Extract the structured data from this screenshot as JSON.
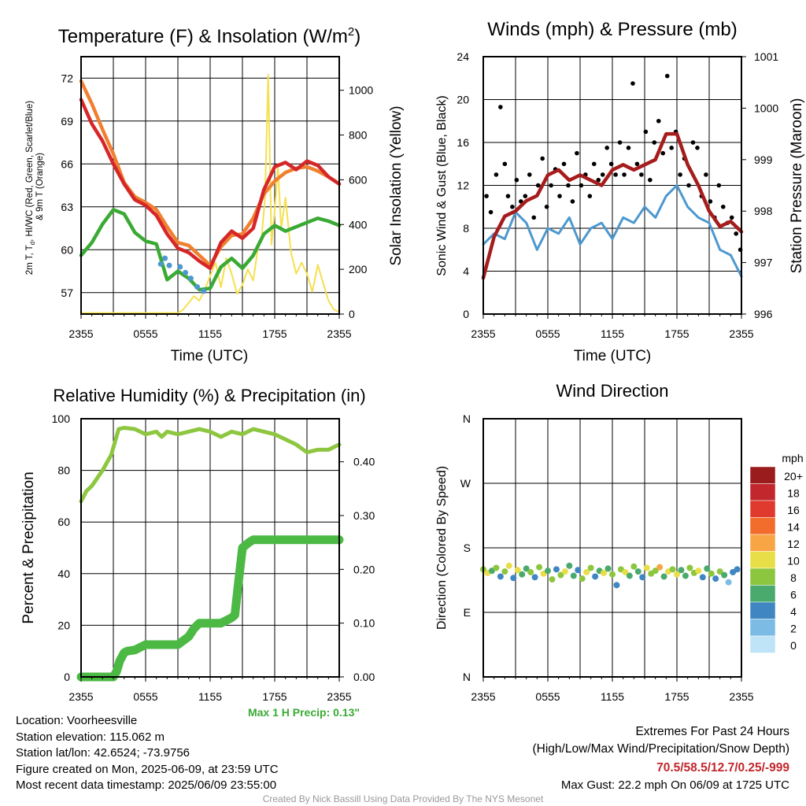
{
  "colors": {
    "red": "#d62728",
    "orange": "#f08030",
    "green": "#3aaa35",
    "yellow": "#f5e050",
    "blue": "#4d98cf",
    "black": "#000000",
    "maroon": "#a61c1c",
    "rh_green": "#8dc63f",
    "precip_green": "#4cb944",
    "extremes_red": "#c1272d"
  },
  "chart_data": [
    {
      "type": "line",
      "title": "Temperature (F) & Insolation (W/m²)",
      "xlabel": "Time (UTC)",
      "ylabel_left": "2m T, Td, HI/WC (Red, Green, Scarlet/Blue) & 9m T (Orange)",
      "ylabel_right": "Solar Insolation (Yellow)",
      "x_ticks": [
        "2355",
        "0555",
        "1155",
        "1755",
        "2355"
      ],
      "ylim_left": [
        55.5,
        73.5
      ],
      "yticks_left": [
        57,
        60,
        63,
        66,
        69,
        72
      ],
      "ylim_right": [
        0,
        1150
      ],
      "yticks_right": [
        0,
        200,
        400,
        600,
        800,
        1000
      ],
      "x_hours_range": [
        0,
        24
      ],
      "series": [
        {
          "key": "t9m",
          "color": "orange",
          "axis": "left",
          "x": [
            0,
            1,
            2,
            3,
            4,
            5,
            6,
            7,
            8,
            9,
            10,
            11,
            12,
            13,
            14,
            15,
            16,
            17,
            18,
            19,
            20,
            21,
            22,
            23,
            24
          ],
          "y": [
            71.8,
            70.2,
            68.4,
            66.7,
            64.7,
            63.7,
            63.3,
            62.8,
            61.6,
            60.5,
            60.3,
            59.6,
            58.9,
            60.2,
            61.0,
            61.1,
            62.2,
            63.9,
            64.8,
            65.4,
            65.7,
            65.8,
            65.5,
            65.1,
            64.6
          ]
        },
        {
          "key": "t2m",
          "color": "red",
          "axis": "left",
          "x": [
            0,
            1,
            2,
            3,
            4,
            5,
            6,
            7,
            8,
            9,
            10,
            11,
            12,
            13,
            14,
            15,
            16,
            17,
            18,
            19,
            20,
            21,
            22,
            23,
            24
          ],
          "y": [
            70.5,
            68.8,
            67.6,
            66.0,
            64.6,
            63.5,
            63.1,
            62.4,
            61.1,
            60.1,
            59.8,
            59.2,
            58.7,
            60.5,
            61.3,
            60.8,
            61.5,
            64.2,
            65.8,
            66.1,
            65.6,
            66.2,
            65.9,
            65.1,
            64.6
          ]
        },
        {
          "key": "td",
          "color": "green",
          "axis": "left",
          "x": [
            0,
            1,
            2,
            3,
            4,
            5,
            6,
            7,
            8,
            9,
            10,
            11,
            12,
            13,
            14,
            15,
            16,
            17,
            18,
            19,
            20,
            21,
            22,
            23,
            24
          ],
          "y": [
            59.6,
            60.5,
            61.8,
            62.8,
            62.5,
            61.2,
            60.6,
            60.4,
            57.9,
            58.5,
            58.0,
            57.2,
            57.3,
            58.8,
            59.4,
            58.7,
            59.6,
            61.1,
            61.7,
            61.3,
            61.6,
            61.9,
            62.2,
            62.0,
            61.7
          ]
        },
        {
          "key": "solar",
          "color": "yellow",
          "axis": "right",
          "x": [
            0,
            1,
            2,
            3,
            4,
            5,
            6,
            7,
            8,
            9,
            9.5,
            10,
            10.5,
            11,
            11.5,
            12,
            12.5,
            13,
            13.5,
            14,
            14.5,
            15,
            15.5,
            16,
            16.4,
            16.8,
            17.1,
            17.4,
            17.7,
            18,
            18.3,
            18.6,
            19,
            19.5,
            20,
            20.5,
            21,
            21.5,
            22,
            22.5,
            23,
            23.5,
            24
          ],
          "y": [
            5,
            5,
            5,
            5,
            5,
            5,
            5,
            5,
            5,
            5,
            20,
            50,
            80,
            60,
            110,
            170,
            230,
            120,
            250,
            180,
            90,
            130,
            200,
            150,
            280,
            350,
            520,
            1070,
            310,
            460,
            660,
            380,
            520,
            280,
            180,
            230,
            180,
            100,
            220,
            140,
            60,
            20,
            10
          ]
        },
        {
          "key": "hi_wc",
          "color": "blue",
          "axis": "left",
          "x": [
            7.4,
            7.8,
            8.2,
            9.2,
            9.7,
            10.2,
            10.8,
            11.4
          ],
          "y": [
            59.0,
            59.4,
            58.9,
            58.8,
            58.4,
            58.0,
            57.4,
            57.1
          ]
        }
      ]
    },
    {
      "type": "line",
      "title": "Winds (mph) & Pressure (mb)",
      "xlabel": "Time (UTC)",
      "ylabel_left": "Sonic Wind & Gust (Blue, Black)",
      "ylabel_right": "Station Pressure (Maroon)",
      "x_ticks": [
        "2355",
        "0555",
        "1155",
        "1755",
        "2355"
      ],
      "ylim_left": [
        0,
        24
      ],
      "yticks_left": [
        0,
        4,
        8,
        12,
        16,
        20,
        24
      ],
      "ylim_right": [
        996,
        1001
      ],
      "yticks_right": [
        996,
        997,
        998,
        999,
        1000,
        1001
      ],
      "series": [
        {
          "key": "wind",
          "color": "blue",
          "axis": "left",
          "x": [
            0,
            1,
            2,
            3,
            4,
            5,
            6,
            7,
            8,
            9,
            10,
            11,
            12,
            13,
            14,
            15,
            16,
            17,
            18,
            19,
            20,
            21,
            22,
            23,
            24
          ],
          "y": [
            6.5,
            7.5,
            7.0,
            9.5,
            8.5,
            6.0,
            8.0,
            7.5,
            9.0,
            6.5,
            8.0,
            8.5,
            7.0,
            9.0,
            8.5,
            10.0,
            9.0,
            11.0,
            12.0,
            10.0,
            9.0,
            8.5,
            6.0,
            5.5,
            3.5
          ]
        },
        {
          "key": "pressure",
          "color": "maroon",
          "axis": "right",
          "x": [
            0,
            1,
            2,
            3,
            4,
            5,
            6,
            7,
            8,
            9,
            10,
            11,
            12,
            13,
            14,
            15,
            16,
            17,
            18,
            19,
            20,
            21,
            22,
            23,
            24
          ],
          "y": [
            996.7,
            997.5,
            997.9,
            998.0,
            998.2,
            998.3,
            998.7,
            998.8,
            998.6,
            998.7,
            998.6,
            998.5,
            998.8,
            998.9,
            998.8,
            998.9,
            999.0,
            999.5,
            999.5,
            998.9,
            998.5,
            998.0,
            997.7,
            997.8,
            997.6
          ]
        },
        {
          "key": "gust",
          "color": "black",
          "axis": "left",
          "marker": "dot",
          "x": [
            0.3,
            0.7,
            1.2,
            1.6,
            2.0,
            2.3,
            2.7,
            3.1,
            3.5,
            3.9,
            4.3,
            4.7,
            5.1,
            5.5,
            5.9,
            6.3,
            6.7,
            7.1,
            7.5,
            7.9,
            8.3,
            8.7,
            9.1,
            9.5,
            9.9,
            10.3,
            10.7,
            11.1,
            11.5,
            11.9,
            12.3,
            12.7,
            13.1,
            13.5,
            13.9,
            14.3,
            14.7,
            15.1,
            15.5,
            15.9,
            16.3,
            16.7,
            17.1,
            17.5,
            17.9,
            18.3,
            18.7,
            19.1,
            19.5,
            19.9,
            20.3,
            20.7,
            21.1,
            21.5,
            21.9,
            22.3,
            22.7,
            23.1,
            23.5,
            23.9
          ],
          "y": [
            11,
            9.5,
            13,
            19.3,
            14,
            11,
            10,
            12.5,
            10.5,
            11,
            13,
            9,
            12,
            14.5,
            10,
            12,
            13.5,
            11,
            14,
            12,
            10.5,
            15,
            12,
            13,
            11,
            14,
            12.5,
            13,
            15.5,
            14,
            13,
            16,
            13,
            15.5,
            21.5,
            14,
            13,
            17,
            12.5,
            16,
            18,
            15,
            22.2,
            15.5,
            17,
            13,
            14.5,
            12,
            16,
            15.5,
            11,
            13,
            10.5,
            9,
            12,
            10,
            8.5,
            9,
            7.5,
            6
          ]
        }
      ]
    },
    {
      "type": "line",
      "title": "Relative Humidity (%) & Precipitation (in)",
      "xlabel": "",
      "ylabel_left": "Percent & Precipitation",
      "x_ticks": [
        "2355",
        "0555",
        "1155",
        "1755",
        "2355"
      ],
      "ylim_left": [
        0,
        100
      ],
      "yticks_left": [
        0,
        20,
        40,
        60,
        80,
        100
      ],
      "ylim_right": [
        0,
        0.48
      ],
      "yticks_right": [
        "0.00",
        "0.10",
        "0.20",
        "0.30",
        "0.40"
      ],
      "annotation": "Max 1 H Precip: 0.13\"",
      "series": [
        {
          "key": "rh",
          "color": "rh_green",
          "axis": "left",
          "x": [
            0,
            0.5,
            1,
            2,
            2.8,
            3.5,
            4,
            5,
            6,
            7,
            7.5,
            8,
            9,
            10,
            11,
            12,
            13,
            14,
            15,
            16,
            17,
            18,
            19,
            20,
            21,
            22,
            23,
            24
          ],
          "y": [
            68,
            72,
            74,
            80,
            86,
            96,
            96.5,
            96,
            94,
            95,
            93,
            95,
            94,
            95,
            96,
            95,
            93,
            95,
            94,
            96,
            95,
            94,
            92,
            90,
            87,
            88,
            88,
            90
          ]
        },
        {
          "key": "precip",
          "color": "precip_green",
          "axis": "right",
          "x": [
            0,
            1,
            2,
            3,
            3.3,
            3.6,
            4,
            4.3,
            5,
            6,
            7,
            8,
            9,
            10,
            10.5,
            11,
            11.5,
            12,
            13,
            14,
            14.3,
            14.6,
            15,
            15.3,
            15.6,
            16,
            17,
            18,
            19,
            20,
            21,
            22,
            23,
            24
          ],
          "y": [
            0,
            0,
            0,
            0,
            0.01,
            0.03,
            0.045,
            0.048,
            0.05,
            0.06,
            0.06,
            0.06,
            0.06,
            0.075,
            0.09,
            0.1,
            0.1,
            0.1,
            0.1,
            0.11,
            0.115,
            0.17,
            0.24,
            0.245,
            0.25,
            0.255,
            0.255,
            0.255,
            0.255,
            0.255,
            0.255,
            0.255,
            0.255,
            0.255
          ]
        }
      ]
    },
    {
      "type": "scatter",
      "title": "Wind Direction",
      "ylabel_left": "Direction (Colored By Speed)",
      "x_ticks": [
        "2355",
        "0555",
        "1155",
        "1755",
        "2355"
      ],
      "y_ticks": [
        "N",
        "E",
        "S",
        "W",
        "N"
      ],
      "ylim_left": [
        0,
        360
      ],
      "colorbar_title": "mph",
      "colorbar_labels": [
        "20+",
        "18",
        "16",
        "14",
        "12",
        "10",
        "8",
        "6",
        "4",
        "2",
        "0"
      ],
      "colorbar_colors": [
        "#9b1c1c",
        "#c1272d",
        "#e03a2e",
        "#f26c2b",
        "#f8a545",
        "#e8df48",
        "#8cc63f",
        "#4aa96c",
        "#3f86c2",
        "#7cbbe3",
        "#bfe4f7"
      ],
      "speed_bins": [
        20,
        18,
        16,
        14,
        12,
        10,
        8,
        6,
        4,
        2,
        0
      ],
      "series": [
        {
          "key": "dir",
          "x": [
            0,
            0.4,
            0.8,
            1.2,
            1.6,
            2.0,
            2.4,
            2.8,
            3.2,
            3.6,
            4.0,
            4.4,
            4.8,
            5.2,
            5.6,
            6.0,
            6.4,
            6.8,
            7.2,
            7.6,
            8.0,
            8.4,
            8.8,
            9.2,
            9.6,
            10.0,
            10.4,
            10.8,
            11.2,
            11.6,
            12.0,
            12.4,
            12.8,
            13.2,
            13.6,
            14.0,
            14.4,
            14.8,
            15.2,
            15.6,
            16.0,
            16.4,
            16.8,
            17.2,
            17.6,
            18.0,
            18.4,
            18.8,
            19.2,
            19.6,
            20.0,
            20.4,
            20.8,
            21.2,
            21.6,
            22.0,
            22.4,
            22.8,
            23.2,
            23.6
          ],
          "y": [
            150,
            145,
            148,
            152,
            140,
            147,
            155,
            138,
            149,
            143,
            151,
            146,
            139,
            153,
            144,
            148,
            136,
            150,
            142,
            147,
            155,
            141,
            149,
            137,
            146,
            152,
            140,
            148,
            145,
            151,
            143,
            128,
            150,
            146,
            141,
            154,
            147,
            139,
            152,
            144,
            148,
            153,
            140,
            147,
            150,
            143,
            149,
            141,
            152,
            145,
            148,
            139,
            151,
            144,
            137,
            147,
            142,
            132,
            146,
            150
          ],
          "speed": [
            8,
            10,
            6,
            9,
            4,
            8,
            11,
            5,
            10,
            7,
            6,
            9,
            4,
            8,
            11,
            6,
            8,
            5,
            9,
            10,
            7,
            6,
            4,
            9,
            10,
            8,
            5,
            7,
            10,
            6,
            8,
            4,
            9,
            11,
            6,
            8,
            7,
            5,
            10,
            8,
            9,
            12,
            6,
            11,
            8,
            10,
            7,
            6,
            8,
            9,
            10,
            5,
            7,
            8,
            4,
            9,
            6,
            3,
            5,
            4
          ]
        }
      ]
    }
  ],
  "info": {
    "location": "Location: Voorheesville",
    "elevation": "Station elevation: 115.062 m",
    "latlon": "Station lat/lon: 42.6524; -73.9756",
    "created": "Figure created on Mon, 2025-06-09, at 23:59 UTC",
    "recent": "Most recent data timestamp: 2025/06/09 23:55:00"
  },
  "extremes": {
    "title": "Extremes For Past 24 Hours",
    "subtitle": "(High/Low/Max Wind/Precipitation/Snow Depth)",
    "values": "70.5/58.5/12.7/0.25/-999",
    "gust": "Max Gust: 22.2 mph On 06/09 at 1725 UTC"
  },
  "credit": "Created By Nick Bassill Using Data Provided By The NYS Mesonet"
}
